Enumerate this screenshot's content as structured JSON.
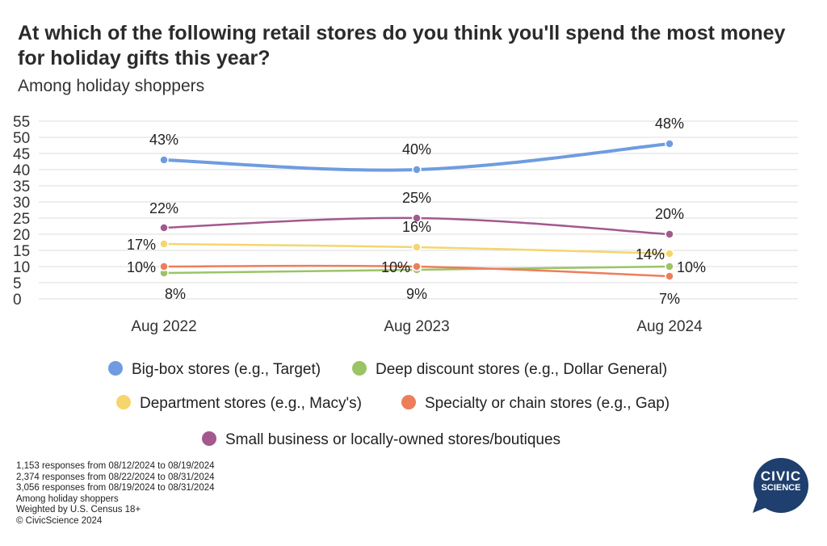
{
  "title": "At which of the following retail stores do you think you'll spend the most money for holiday gifts this year?",
  "subtitle": "Among holiday shoppers",
  "chart_data": {
    "type": "line",
    "title": "At which of the following retail stores do you think you'll spend the most money for holiday gifts this year?",
    "subtitle": "Among holiday shoppers",
    "x": [
      "Aug 2022",
      "Aug 2023",
      "Aug 2024"
    ],
    "ylim": [
      0,
      55
    ],
    "yticks": [
      0,
      5,
      10,
      15,
      20,
      25,
      30,
      35,
      40,
      45,
      50,
      55
    ],
    "grid": true,
    "legend_position": "bottom",
    "series": [
      {
        "name": "Big-box stores (e.g., Target)",
        "color": "#6F9CE0",
        "values": [
          43,
          40,
          48
        ],
        "labels": [
          "43%",
          "40%",
          "48%"
        ]
      },
      {
        "name": "Deep discount stores (e.g., Dollar General)",
        "color": "#9BC465",
        "values": [
          8,
          9,
          10
        ],
        "labels": [
          "8%",
          "9%",
          "10%"
        ]
      },
      {
        "name": "Department stores (e.g., Macy's)",
        "color": "#F5D66E",
        "values": [
          17,
          16,
          14
        ],
        "labels": [
          "17%",
          "16%",
          "14%"
        ]
      },
      {
        "name": "Specialty or chain stores (e.g., Gap)",
        "color": "#EE7D5B",
        "values": [
          10,
          10,
          7
        ],
        "labels": [
          "10%",
          "10%",
          "7%"
        ]
      },
      {
        "name": "Small business or locally-owned stores/boutiques",
        "color": "#A3598E",
        "values": [
          22,
          25,
          20
        ],
        "labels": [
          "22%",
          "25%",
          "20%"
        ]
      }
    ]
  },
  "notes": [
    "1,153 responses from 08/12/2024 to 08/19/2024",
    "2,374 responses from 08/22/2024 to 08/31/2024",
    "3,056 responses from 08/19/2024 to 08/31/2024",
    "Among holiday shoppers",
    "Weighted by U.S. Census 18+",
    "© CivicScience 2024"
  ],
  "logo": {
    "line1": "CIVIC",
    "line2": "SCIENCE",
    "color": "#1F3F6E"
  }
}
